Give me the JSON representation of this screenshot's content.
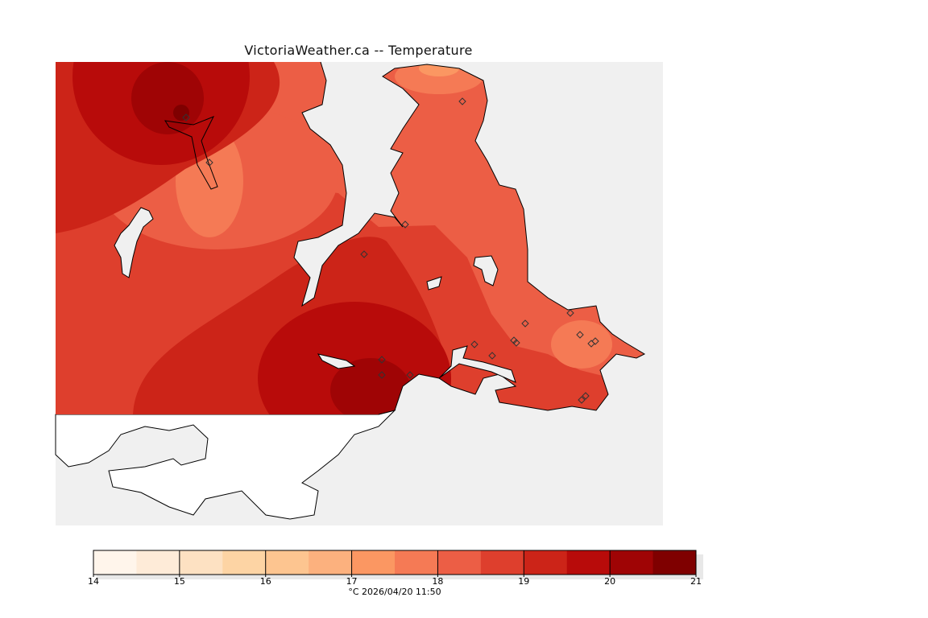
{
  "title": "VictoriaWeather.ca -- Temperature",
  "legend": {
    "units_and_time": "°C  2026/04/20 11:50",
    "ticks": [
      "14",
      "15",
      "16",
      "17",
      "18",
      "19",
      "20",
      "21"
    ],
    "min": 14,
    "max": 21,
    "step": 0.5,
    "colors": [
      "#fff5eb",
      "#feebd8",
      "#fde1c2",
      "#fdd4a4",
      "#fdc590",
      "#fcb17e",
      "#fb9762",
      "#f57a55",
      "#ec5e45",
      "#de3f2d",
      "#cc2418",
      "#b80b0a",
      "#9f0405",
      "#7f0000"
    ]
  },
  "map": {
    "water_color": "#f0f0f0",
    "foreign_land_color": "#ffffff"
  }
}
